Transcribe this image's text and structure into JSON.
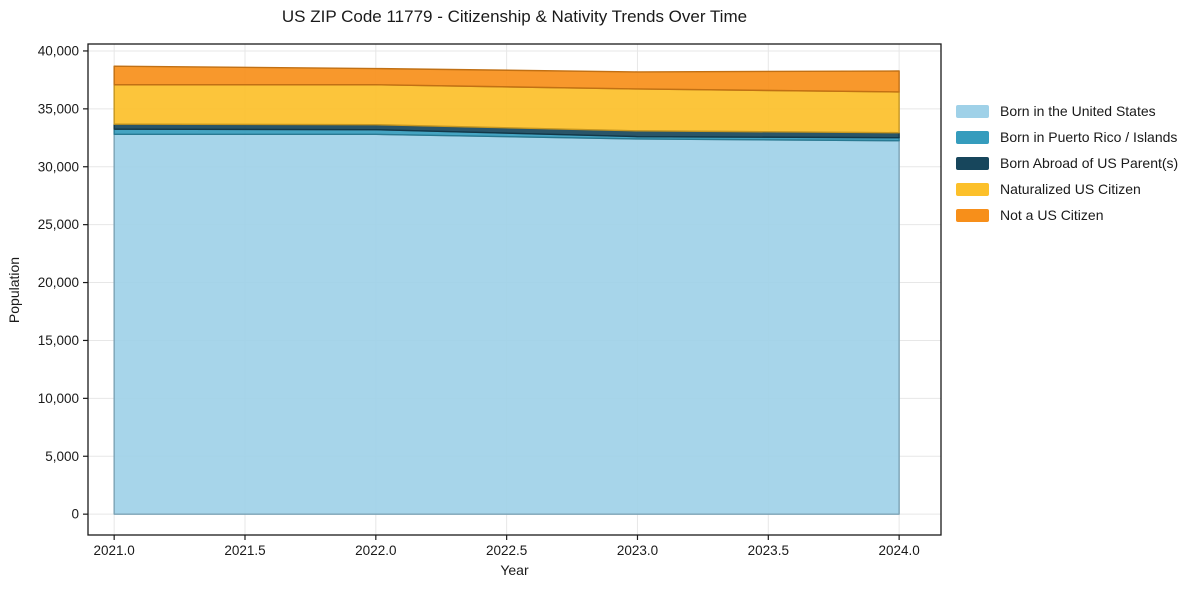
{
  "page": {
    "background": "#ffffff",
    "text_color": "#1a1a1a",
    "grid_color": "#e7e7e7"
  },
  "chart_data": {
    "type": "area",
    "stacked": true,
    "title": "US ZIP Code 11779 - Citizenship & Nativity Trends Over Time",
    "xlabel": "Year",
    "ylabel": "Population",
    "x": [
      2021,
      2022,
      2023,
      2024
    ],
    "series": [
      {
        "name": "Born in the United States",
        "color": "#9fd1e8",
        "values": [
          32800,
          32800,
          32400,
          32250
        ]
      },
      {
        "name": "Born in Puerto Rico / Islands",
        "color": "#359cbd",
        "values": [
          450,
          400,
          200,
          260
        ]
      },
      {
        "name": "Born Abroad of US Parent(s)",
        "color": "#17465c",
        "values": [
          430,
          430,
          500,
          430
        ]
      },
      {
        "name": "Naturalized US Citizen",
        "color": "#fcc02a",
        "values": [
          3400,
          3450,
          3620,
          3520
        ]
      },
      {
        "name": "Not a US Citizen",
        "color": "#f78f1a",
        "values": [
          1600,
          1400,
          1470,
          1810
        ]
      }
    ],
    "totals": [
      38680,
      38480,
      38190,
      38270
    ],
    "xticks": {
      "values": [
        2021.0,
        2021.5,
        2022.0,
        2022.5,
        2023.0,
        2023.5,
        2024.0
      ],
      "labels": [
        "2021.0",
        "2021.5",
        "2022.0",
        "2022.5",
        "2023.0",
        "2023.5",
        "2024.0"
      ]
    },
    "yticks": {
      "values": [
        0,
        5000,
        10000,
        15000,
        20000,
        25000,
        30000,
        35000,
        40000
      ],
      "labels": [
        "0",
        "5,000",
        "10,000",
        "15,000",
        "20,000",
        "25,000",
        "30,000",
        "35,000",
        "40,000"
      ]
    },
    "xlim": [
      2020.9,
      2024.16
    ],
    "ylim": [
      -1800,
      40600
    ],
    "grid": true,
    "legend_position": "right",
    "fill_opacity": 0.92
  }
}
